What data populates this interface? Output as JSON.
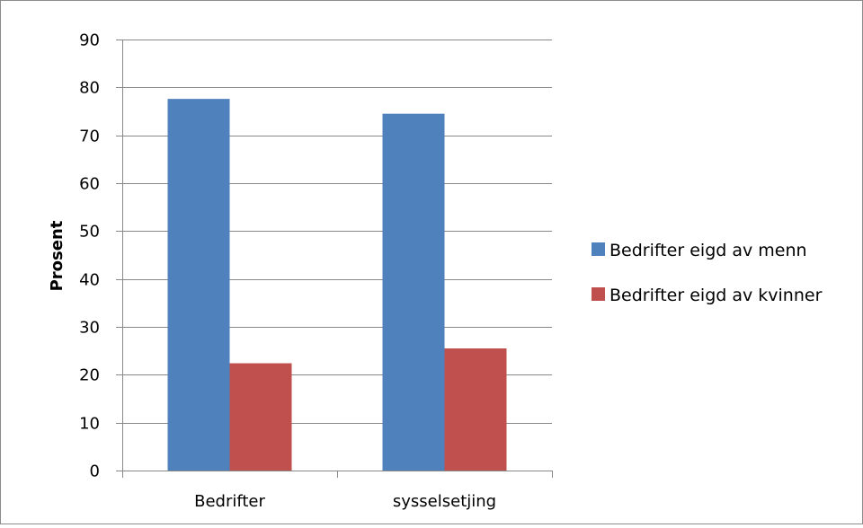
{
  "chart_data": {
    "type": "bar",
    "categories": [
      "Bedrifter",
      "sysselsetjing"
    ],
    "series": [
      {
        "name": "Bedrifter eigd av menn",
        "values": [
          77.6,
          74.5
        ],
        "color": "#4f81bd"
      },
      {
        "name": "Bedrifter eigd av kvinner",
        "values": [
          22.4,
          25.5
        ],
        "color": "#c0504d"
      }
    ],
    "ylabel": "Prosent",
    "ylim": [
      0,
      90
    ],
    "yticks": [
      0,
      10,
      20,
      30,
      40,
      50,
      60,
      70,
      80,
      90
    ],
    "grid": true,
    "legend_position": "right"
  }
}
